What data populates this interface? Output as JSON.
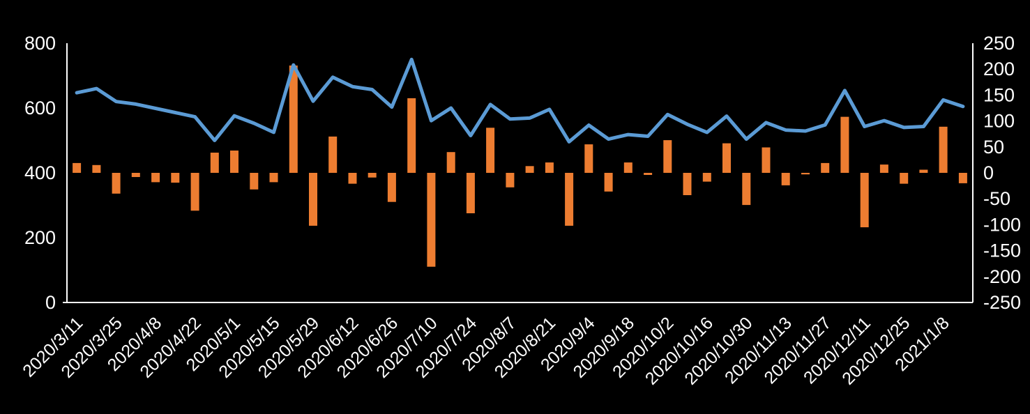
{
  "chart_data": {
    "type": "combo",
    "title": "",
    "legend": "none",
    "background_color": "#000000",
    "text_color": "#ffffff",
    "axis_line_color": "#ffffff",
    "x_labels": [
      "2020/3/11",
      "2020/3/25",
      "2020/4/8",
      "2020/4/22",
      "2020/5/1",
      "2020/5/15",
      "2020/5/29",
      "2020/6/12",
      "2020/6/26",
      "2020/7/10",
      "2020/7/24",
      "2020/8/7",
      "2020/8/21",
      "2020/9/4",
      "2020/9/18",
      "2020/10/2",
      "2020/10/16",
      "2020/10/30",
      "2020/11/13",
      "2020/11/27",
      "2020/12/11",
      "2020/12/25",
      "2021/1/8"
    ],
    "label_every_n_points": 2,
    "num_points": 46,
    "series": [
      {
        "name": "line-series",
        "type": "line",
        "axis": "left",
        "color": "#5B9BD5",
        "values": [
          647,
          660,
          620,
          612,
          599,
          586,
          573,
          500,
          576,
          553,
          525,
          733,
          621,
          695,
          666,
          657,
          603,
          750,
          561,
          600,
          515,
          611,
          566,
          569,
          596,
          496,
          547,
          504,
          518,
          513,
          580,
          550,
          525,
          575,
          504,
          555,
          532,
          529,
          548,
          654,
          543,
          561,
          540,
          543,
          625,
          605
        ]
      },
      {
        "name": "bar-series",
        "type": "bar",
        "axis": "right",
        "color": "#ED7D31",
        "values": [
          19,
          15,
          -40,
          -8,
          -18,
          -19,
          -73,
          39,
          43,
          -32,
          -18,
          207,
          -102,
          70,
          -21,
          -9,
          -56,
          144,
          -181,
          40,
          -78,
          87,
          -28,
          13,
          20,
          -102,
          55,
          -36,
          20,
          -4,
          63,
          -43,
          -17,
          57,
          -62,
          49,
          -24,
          -3,
          19,
          108,
          -105,
          16,
          -21,
          6,
          89,
          -20
        ]
      }
    ],
    "left_axis": {
      "range": [
        0,
        800
      ],
      "tick_labels": [
        "0",
        "200",
        "400",
        "600",
        "800"
      ],
      "tick_values": [
        0,
        200,
        400,
        600,
        800
      ]
    },
    "right_axis": {
      "range": [
        -250,
        250
      ],
      "tick_labels": [
        "250",
        "200",
        "150",
        "100",
        "50",
        "0",
        "-50",
        "-100",
        "-150",
        "-200",
        "-250"
      ],
      "tick_values": [
        250,
        200,
        150,
        100,
        50,
        0,
        -50,
        -100,
        -150,
        -200,
        -250
      ]
    },
    "grid": "off"
  }
}
